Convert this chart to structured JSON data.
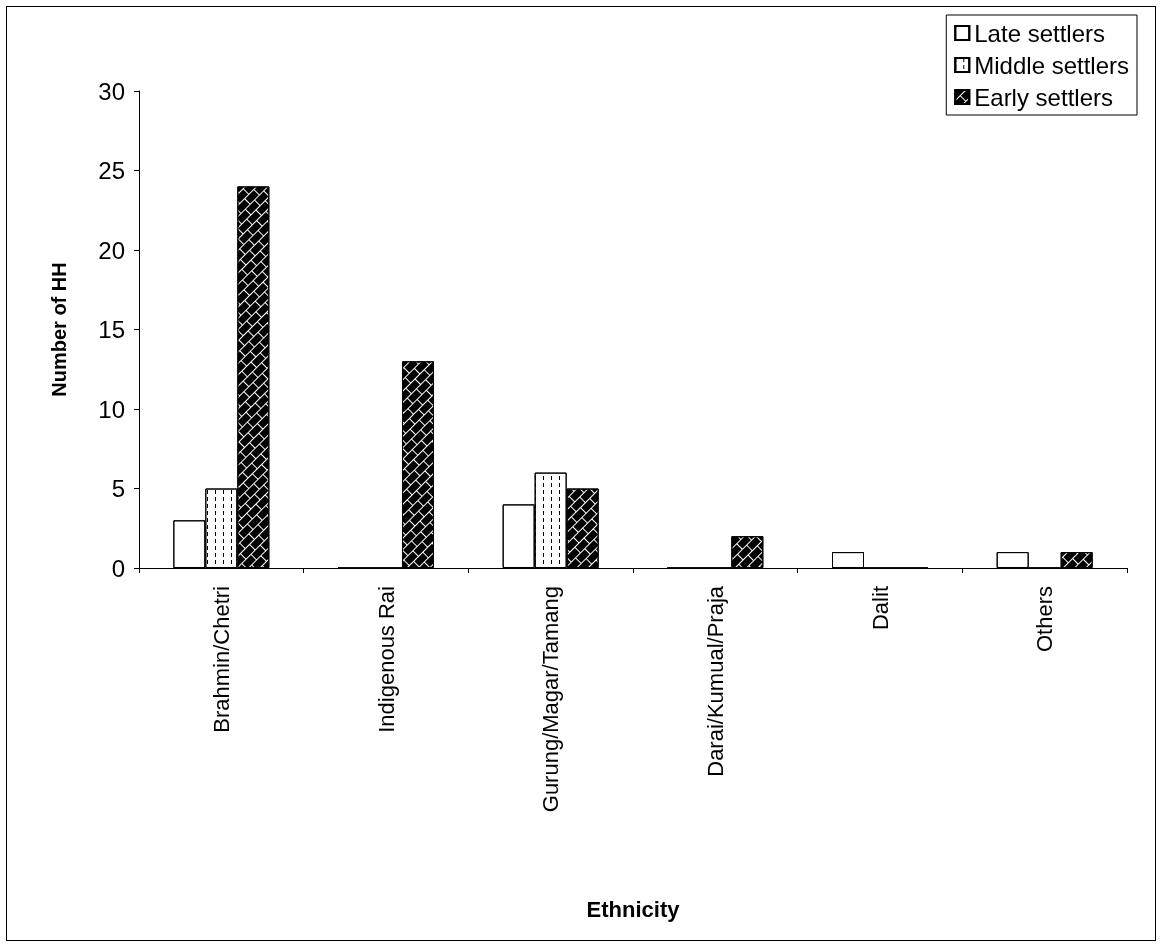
{
  "chart_data": {
    "type": "bar",
    "xlabel": "Ethnicity",
    "ylabel": "Number of HH",
    "categories": [
      "Brahmin/Chetri",
      "Indigenous Rai",
      "Gurung/Magar/Tamang",
      "Darai/Kumual/Praja",
      "Dalit",
      "Others"
    ],
    "series": [
      {
        "name": "Late settlers",
        "color": "#ffffff",
        "values": [
          3,
          0,
          4,
          0,
          1,
          1
        ]
      },
      {
        "name": "Middle settlers",
        "color": "#ffffff",
        "values": [
          5,
          0,
          6,
          0,
          0,
          0
        ]
      },
      {
        "name": "Early settlers",
        "color": "#ffffff",
        "values": [
          24,
          13,
          5,
          2,
          0,
          1
        ]
      }
    ],
    "ylim": [
      0,
      30
    ],
    "yticks": [
      0,
      5,
      10,
      15,
      20,
      25,
      30
    ],
    "grid": false,
    "legend": "top right"
  }
}
